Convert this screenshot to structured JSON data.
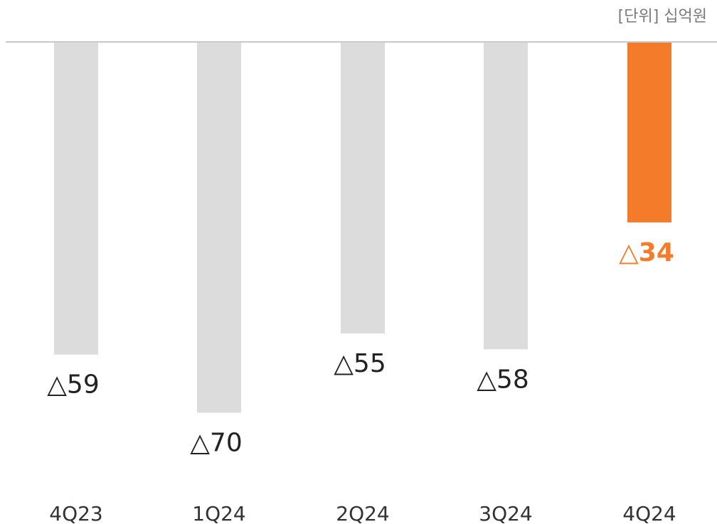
{
  "chart_data": {
    "type": "bar",
    "orientation": "negative-downward",
    "unit_label": "[단위] 십억원",
    "categories": [
      "4Q23",
      "1Q24",
      "2Q24",
      "3Q24",
      "4Q24"
    ],
    "values": [
      -59,
      -70,
      -55,
      -58,
      -34
    ],
    "value_labels": [
      "△59",
      "△70",
      "△55",
      "△58",
      "△34"
    ],
    "highlight_index": 4,
    "ylim": [
      -78,
      0
    ],
    "grid": false,
    "legend": "none"
  },
  "colors": {
    "bar_default": "#dcdcdc",
    "bar_highlight": "#f47b2a",
    "label_default": "#222222",
    "label_highlight": "#f47b2a",
    "baseline": "#c8c8c8"
  }
}
